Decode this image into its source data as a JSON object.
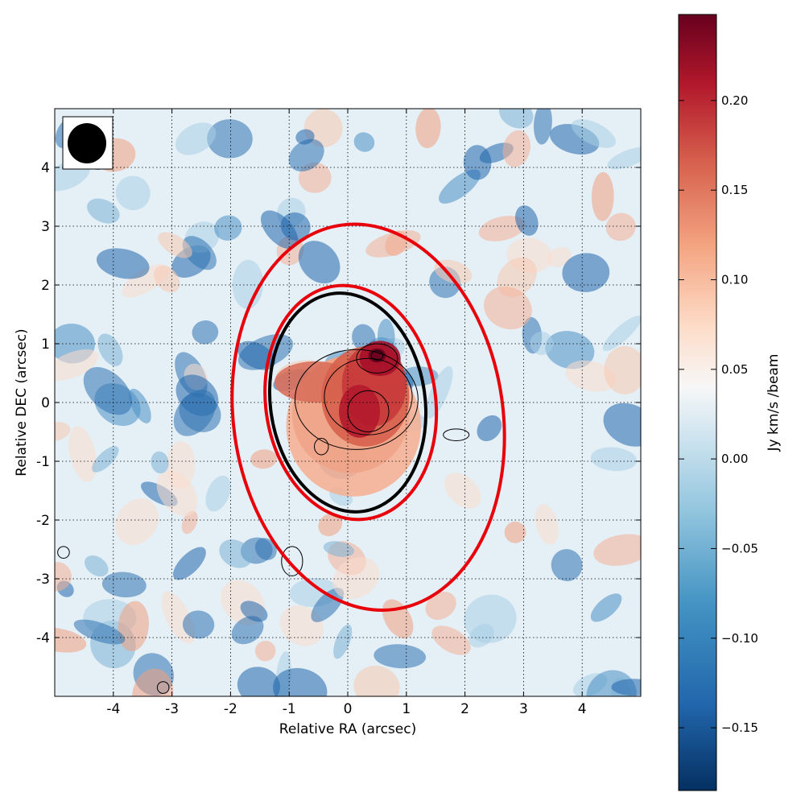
{
  "chart_data": {
    "type": "heatmap",
    "xlabel": "Relative RA (arcsec)",
    "ylabel": "Relative DEC (arcsec)",
    "xlim": [
      -5,
      5
    ],
    "ylim": [
      -5,
      5
    ],
    "grid": true,
    "x_ticks": [
      -4,
      -3,
      -2,
      -1,
      0,
      1,
      2,
      3,
      4
    ],
    "y_ticks": [
      -4,
      -3,
      -2,
      -1,
      0,
      1,
      2,
      3,
      4
    ],
    "colorbar": {
      "label": "Jy km/s /beam",
      "range": [
        -0.185,
        0.248
      ],
      "ticks": [
        "−0.15",
        "−0.10",
        "−0.05",
        "0.00",
        "0.05",
        "0.10",
        "0.15",
        "0.20"
      ],
      "tick_values": [
        -0.15,
        -0.1,
        -0.05,
        0.0,
        0.05,
        0.1,
        0.15,
        0.2
      ],
      "colormap": "RdBu_r"
    },
    "beam": {
      "major": 0.7,
      "minor": 0.65,
      "position": "top-left"
    },
    "ellipses": [
      {
        "color": "#e8000b",
        "center": [
          0.0,
          0.0
        ],
        "semi_major": 3.3,
        "semi_minor": 2.3
      },
      {
        "color": "#e8000b",
        "center": [
          0.05,
          0.0
        ],
        "semi_major": 2.0,
        "semi_minor": 1.45
      },
      {
        "color": "#000000",
        "center": [
          0.0,
          0.0
        ],
        "semi_major": 1.87,
        "semi_minor": 1.32
      }
    ],
    "emission_peak": {
      "x": 0.4,
      "y": 0.1,
      "value": 0.24
    },
    "contour_levels": [
      0.06,
      0.12,
      0.18,
      0.22
    ]
  },
  "colors": {
    "map_high": "#67001f",
    "map_low": "#053061",
    "ellipse_red": "#e8000b",
    "ellipse_black": "#000000"
  }
}
